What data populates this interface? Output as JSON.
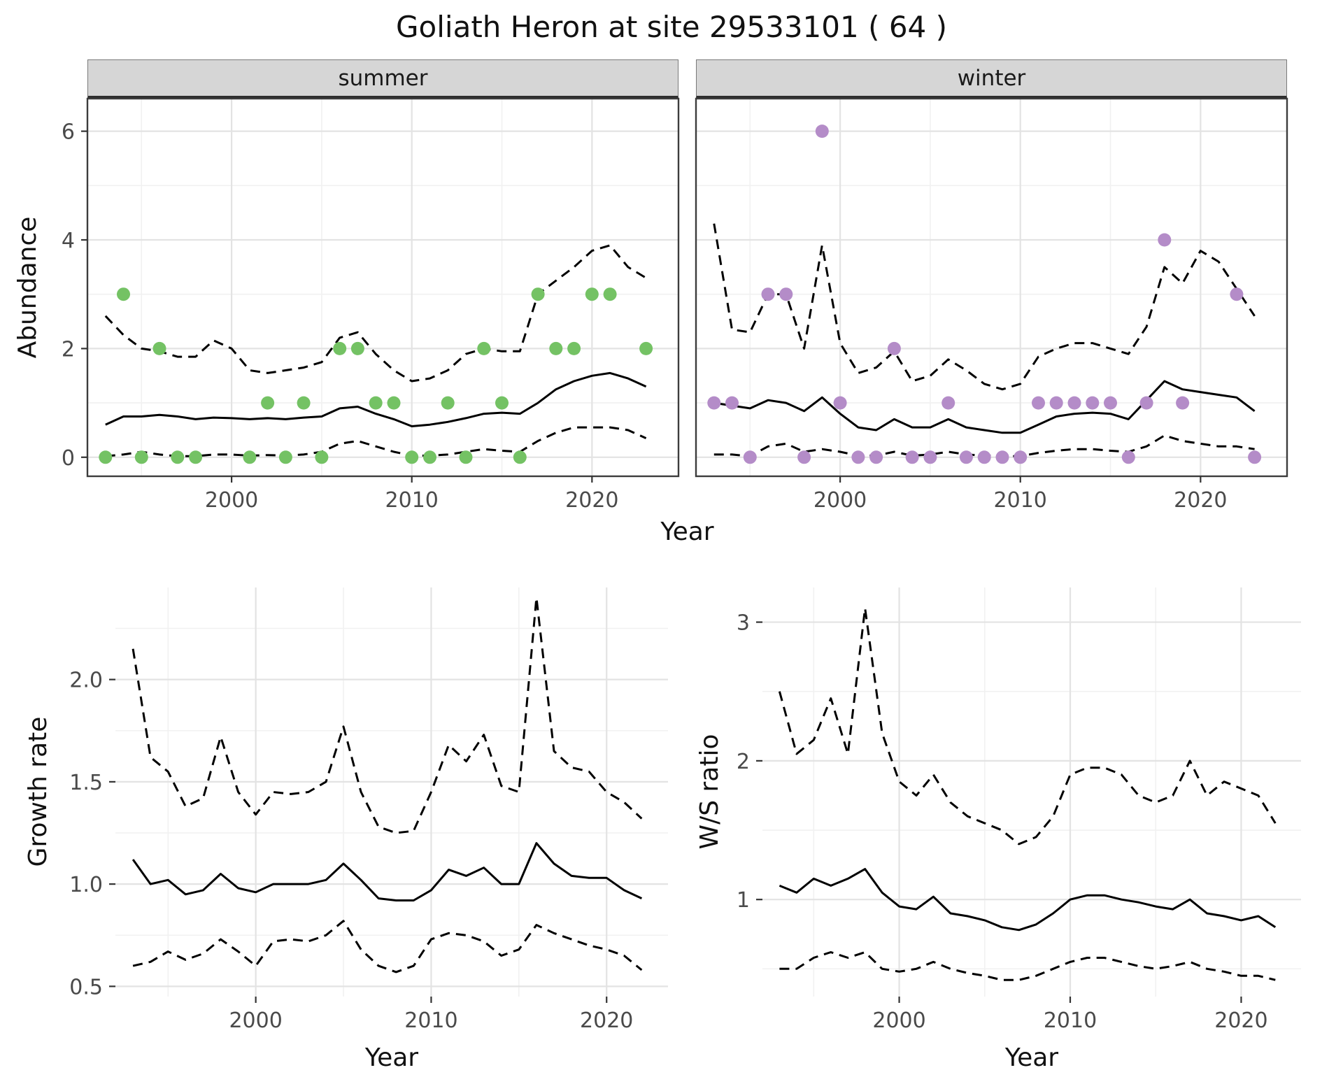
{
  "title": "Goliath Heron at site 29533101 ( 64 )",
  "colors": {
    "summer_point": "#74c264",
    "winter_point": "#b48cc8",
    "line": "#000000",
    "strip_bg": "#d6d6d6",
    "grid_major": "#e3e3e3",
    "grid_minor": "#f1f1f1"
  },
  "top_row": {
    "ylabel": "Abundance",
    "xlabel": "Year",
    "facets": [
      "summer",
      "winter"
    ]
  },
  "bottom_row": {
    "left_ylabel": "Growth rate",
    "right_ylabel": "W/S ratio",
    "xlabel": "Year"
  },
  "chart_data": [
    {
      "name": "summer-abundance",
      "type": "scatter+line",
      "facet": "summer",
      "xlabel": "Year",
      "ylabel": "Abundance",
      "xlim": [
        1992,
        2024.8
      ],
      "ylim": [
        -0.35,
        6.6
      ],
      "xticks": [
        2000,
        2010,
        2020
      ],
      "xtick_labels": [
        "2000",
        "2010",
        "2020"
      ],
      "yticks": [
        0,
        2,
        4,
        6
      ],
      "ytick_labels": [
        "0",
        "2",
        "4",
        "6"
      ],
      "border": true,
      "ylabels": true,
      "years": [
        1993,
        1994,
        1995,
        1996,
        1997,
        1998,
        1999,
        2000,
        2001,
        2002,
        2003,
        2004,
        2005,
        2006,
        2007,
        2008,
        2009,
        2010,
        2011,
        2012,
        2013,
        2014,
        2015,
        2016,
        2017,
        2018,
        2019,
        2020,
        2021,
        2022,
        2023
      ],
      "series": [
        {
          "name": "mean",
          "style": "solid",
          "values": [
            0.6,
            0.75,
            0.75,
            0.78,
            0.75,
            0.7,
            0.73,
            0.72,
            0.7,
            0.72,
            0.7,
            0.73,
            0.75,
            0.9,
            0.93,
            0.8,
            0.7,
            0.57,
            0.6,
            0.65,
            0.72,
            0.8,
            0.82,
            0.8,
            1.0,
            1.25,
            1.4,
            1.5,
            1.55,
            1.45,
            1.3
          ]
        },
        {
          "name": "upper-ci",
          "style": "dashed",
          "values": [
            2.6,
            2.25,
            2.0,
            1.95,
            1.85,
            1.85,
            2.15,
            2.0,
            1.6,
            1.55,
            1.6,
            1.65,
            1.75,
            2.2,
            2.3,
            1.9,
            1.6,
            1.4,
            1.45,
            1.6,
            1.9,
            2.0,
            1.95,
            1.95,
            3.0,
            3.25,
            3.5,
            3.8,
            3.9,
            3.5,
            3.3
          ]
        },
        {
          "name": "lower-ci",
          "style": "dashed",
          "values": [
            0.02,
            0.05,
            0.1,
            0.05,
            0.02,
            0.02,
            0.05,
            0.05,
            0.03,
            0.04,
            0.03,
            0.05,
            0.1,
            0.25,
            0.3,
            0.2,
            0.1,
            0.03,
            0.03,
            0.05,
            0.1,
            0.15,
            0.12,
            0.1,
            0.3,
            0.45,
            0.55,
            0.55,
            0.55,
            0.5,
            0.35
          ]
        }
      ],
      "points": {
        "color": "#74c264",
        "x": [
          1993,
          1994,
          1995,
          1996,
          1997,
          1998,
          2001,
          2002,
          2003,
          2004,
          2005,
          2006,
          2007,
          2008,
          2009,
          2010,
          2011,
          2012,
          2013,
          2014,
          2015,
          2016,
          2017,
          2018,
          2019,
          2020,
          2021,
          2023
        ],
        "y": [
          0,
          3,
          0,
          2,
          0,
          0,
          0,
          1,
          0,
          1,
          0,
          2,
          2,
          1,
          1,
          0,
          0,
          1,
          0,
          2,
          1,
          0,
          3,
          2,
          2,
          3,
          3,
          2
        ]
      }
    },
    {
      "name": "winter-abundance",
      "type": "scatter+line",
      "facet": "winter",
      "xlabel": "Year",
      "ylabel": "Abundance",
      "xlim": [
        1992,
        2024.8
      ],
      "ylim": [
        -0.35,
        6.6
      ],
      "xticks": [
        2000,
        2010,
        2020
      ],
      "xtick_labels": [
        "2000",
        "2010",
        "2020"
      ],
      "yticks": [
        0,
        2,
        4,
        6
      ],
      "ytick_labels": [
        "0",
        "2",
        "4",
        "6"
      ],
      "border": true,
      "ylabels": false,
      "years": [
        1993,
        1994,
        1995,
        1996,
        1997,
        1998,
        1999,
        2000,
        2001,
        2002,
        2003,
        2004,
        2005,
        2006,
        2007,
        2008,
        2009,
        2010,
        2011,
        2012,
        2013,
        2014,
        2015,
        2016,
        2017,
        2018,
        2019,
        2020,
        2021,
        2022,
        2023
      ],
      "series": [
        {
          "name": "mean",
          "style": "solid",
          "values": [
            1.0,
            0.95,
            0.9,
            1.05,
            1.0,
            0.85,
            1.1,
            0.8,
            0.55,
            0.5,
            0.7,
            0.55,
            0.55,
            0.7,
            0.55,
            0.5,
            0.45,
            0.45,
            0.6,
            0.75,
            0.8,
            0.82,
            0.8,
            0.7,
            1.05,
            1.4,
            1.25,
            1.2,
            1.15,
            1.1,
            0.85
          ]
        },
        {
          "name": "upper-ci",
          "style": "dashed",
          "values": [
            4.3,
            2.35,
            2.3,
            3.0,
            3.0,
            2.0,
            3.9,
            2.1,
            1.55,
            1.65,
            1.95,
            1.4,
            1.5,
            1.8,
            1.6,
            1.35,
            1.25,
            1.35,
            1.85,
            2.0,
            2.1,
            2.1,
            2.0,
            1.9,
            2.4,
            3.5,
            3.2,
            3.8,
            3.6,
            3.1,
            2.6
          ]
        },
        {
          "name": "lower-ci",
          "style": "dashed",
          "values": [
            0.05,
            0.05,
            0.02,
            0.2,
            0.25,
            0.1,
            0.15,
            0.1,
            0.03,
            0.03,
            0.1,
            0.03,
            0.05,
            0.1,
            0.05,
            0.03,
            0.02,
            0.02,
            0.08,
            0.12,
            0.15,
            0.15,
            0.12,
            0.1,
            0.2,
            0.4,
            0.3,
            0.25,
            0.2,
            0.2,
            0.15
          ]
        }
      ],
      "points": {
        "color": "#b48cc8",
        "x": [
          1993,
          1994,
          1995,
          1996,
          1997,
          1998,
          1999,
          2000,
          2001,
          2002,
          2003,
          2004,
          2005,
          2006,
          2007,
          2008,
          2009,
          2010,
          2011,
          2012,
          2013,
          2014,
          2015,
          2016,
          2017,
          2018,
          2019,
          2022,
          2023
        ],
        "y": [
          1,
          1,
          0,
          3,
          3,
          0,
          6,
          1,
          0,
          0,
          2,
          0,
          0,
          1,
          0,
          0,
          0,
          0,
          1,
          1,
          1,
          1,
          1,
          0,
          1,
          4,
          1,
          3,
          0
        ]
      }
    },
    {
      "name": "growth-rate",
      "type": "line",
      "xlabel": "Year",
      "ylabel": "Growth rate",
      "xlim": [
        1992,
        2023.5
      ],
      "ylim": [
        0.45,
        2.45
      ],
      "xticks": [
        2000,
        2010,
        2020
      ],
      "xtick_labels": [
        "2000",
        "2010",
        "2020"
      ],
      "yticks": [
        0.5,
        1.0,
        1.5,
        2.0
      ],
      "ytick_labels": [
        "0.5",
        "1.0",
        "1.5",
        "2.0"
      ],
      "border": false,
      "ylabels": true,
      "years": [
        1993,
        1994,
        1995,
        1996,
        1997,
        1998,
        1999,
        2000,
        2001,
        2002,
        2003,
        2004,
        2005,
        2006,
        2007,
        2008,
        2009,
        2010,
        2011,
        2012,
        2013,
        2014,
        2015,
        2016,
        2017,
        2018,
        2019,
        2020,
        2021,
        2022
      ],
      "series": [
        {
          "name": "mean",
          "style": "solid",
          "values": [
            1.12,
            1.0,
            1.02,
            0.95,
            0.97,
            1.05,
            0.98,
            0.96,
            1.0,
            1.0,
            1.0,
            1.02,
            1.1,
            1.02,
            0.93,
            0.92,
            0.92,
            0.97,
            1.07,
            1.04,
            1.08,
            1.0,
            1.0,
            1.2,
            1.1,
            1.04,
            1.03,
            1.03,
            0.97,
            0.93
          ]
        },
        {
          "name": "upper-ci",
          "style": "dashed",
          "values": [
            2.15,
            1.62,
            1.55,
            1.38,
            1.42,
            1.72,
            1.45,
            1.34,
            1.45,
            1.44,
            1.45,
            1.5,
            1.77,
            1.45,
            1.28,
            1.25,
            1.26,
            1.45,
            1.68,
            1.6,
            1.73,
            1.48,
            1.45,
            2.4,
            1.65,
            1.57,
            1.55,
            1.45,
            1.4,
            1.32
          ]
        },
        {
          "name": "lower-ci",
          "style": "dashed",
          "values": [
            0.6,
            0.62,
            0.67,
            0.63,
            0.66,
            0.73,
            0.67,
            0.6,
            0.72,
            0.73,
            0.72,
            0.75,
            0.82,
            0.68,
            0.6,
            0.57,
            0.6,
            0.73,
            0.76,
            0.75,
            0.72,
            0.65,
            0.68,
            0.8,
            0.76,
            0.73,
            0.7,
            0.68,
            0.65,
            0.58
          ]
        }
      ]
    },
    {
      "name": "ws-ratio",
      "type": "line",
      "xlabel": "Year",
      "ylabel": "W/S ratio",
      "xlim": [
        1992,
        2023.5
      ],
      "ylim": [
        0.3,
        3.25
      ],
      "xticks": [
        2000,
        2010,
        2020
      ],
      "xtick_labels": [
        "2000",
        "2010",
        "2020"
      ],
      "yticks": [
        1,
        2,
        3
      ],
      "ytick_labels": [
        "1",
        "2",
        "3"
      ],
      "border": false,
      "ylabels": true,
      "years": [
        1993,
        1994,
        1995,
        1996,
        1997,
        1998,
        1999,
        2000,
        2001,
        2002,
        2003,
        2004,
        2005,
        2006,
        2007,
        2008,
        2009,
        2010,
        2011,
        2012,
        2013,
        2014,
        2015,
        2016,
        2017,
        2018,
        2019,
        2020,
        2021,
        2022
      ],
      "series": [
        {
          "name": "mean",
          "style": "solid",
          "values": [
            1.1,
            1.05,
            1.15,
            1.1,
            1.15,
            1.22,
            1.05,
            0.95,
            0.93,
            1.02,
            0.9,
            0.88,
            0.85,
            0.8,
            0.78,
            0.82,
            0.9,
            1.0,
            1.03,
            1.03,
            1.0,
            0.98,
            0.95,
            0.93,
            1.0,
            0.9,
            0.88,
            0.85,
            0.88,
            0.8
          ]
        },
        {
          "name": "upper-ci",
          "style": "dashed",
          "values": [
            2.5,
            2.05,
            2.15,
            2.45,
            2.05,
            3.1,
            2.2,
            1.85,
            1.75,
            1.9,
            1.7,
            1.6,
            1.55,
            1.5,
            1.4,
            1.45,
            1.6,
            1.9,
            1.95,
            1.95,
            1.9,
            1.75,
            1.7,
            1.75,
            2.0,
            1.75,
            1.85,
            1.8,
            1.75,
            1.55
          ]
        },
        {
          "name": "lower-ci",
          "style": "dashed",
          "values": [
            0.5,
            0.5,
            0.58,
            0.62,
            0.58,
            0.62,
            0.5,
            0.48,
            0.5,
            0.55,
            0.5,
            0.47,
            0.45,
            0.42,
            0.42,
            0.45,
            0.5,
            0.55,
            0.58,
            0.58,
            0.55,
            0.52,
            0.5,
            0.52,
            0.55,
            0.5,
            0.48,
            0.45,
            0.45,
            0.42
          ]
        }
      ]
    }
  ]
}
